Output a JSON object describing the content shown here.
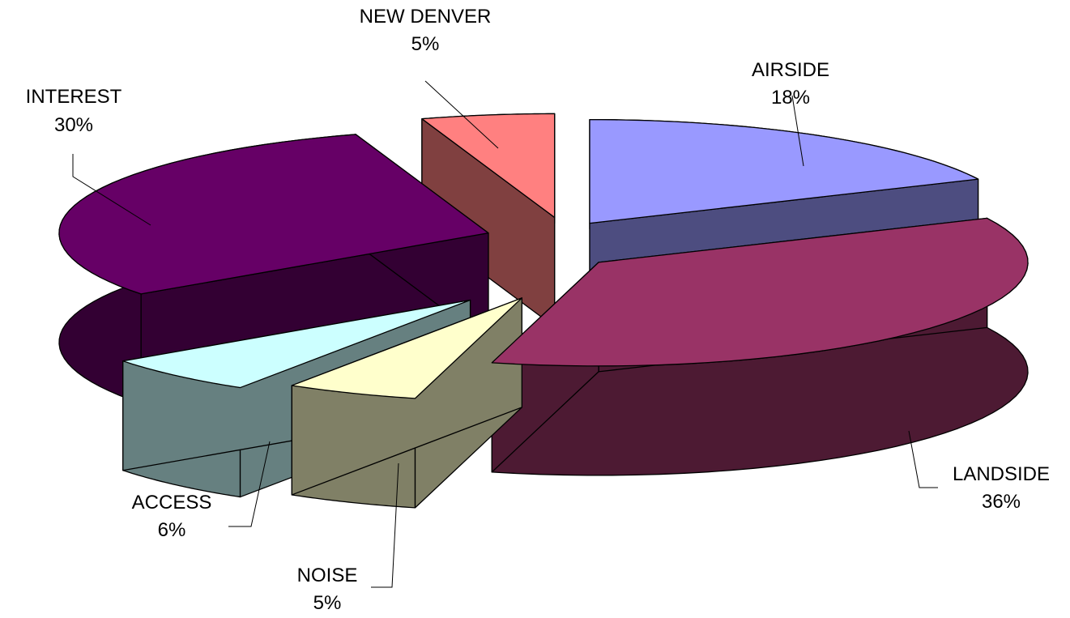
{
  "chart_data": {
    "type": "pie",
    "title": "",
    "legend": "none",
    "data_labels": "category and percent",
    "slices": [
      {
        "label": "AIRSIDE",
        "value": 18,
        "percent_label": "18%",
        "top_color": "#9999FF",
        "side_color": "#4D4D80"
      },
      {
        "label": "LANDSIDE",
        "value": 36,
        "percent_label": "36%",
        "top_color": "#993366",
        "side_color": "#4D1A33"
      },
      {
        "label": "NOISE",
        "value": 5,
        "percent_label": "5%",
        "top_color": "#FFFFCC",
        "side_color": "#808066"
      },
      {
        "label": "ACCESS",
        "value": 6,
        "percent_label": "6%",
        "top_color": "#CCFFFF",
        "side_color": "#668080"
      },
      {
        "label": "INTEREST",
        "value": 30,
        "percent_label": "30%",
        "top_color": "#660066",
        "side_color": "#330033"
      },
      {
        "label": "NEW DENVER",
        "value": 5,
        "percent_label": "5%",
        "top_color": "#FF8080",
        "side_color": "#804040"
      }
    ]
  }
}
